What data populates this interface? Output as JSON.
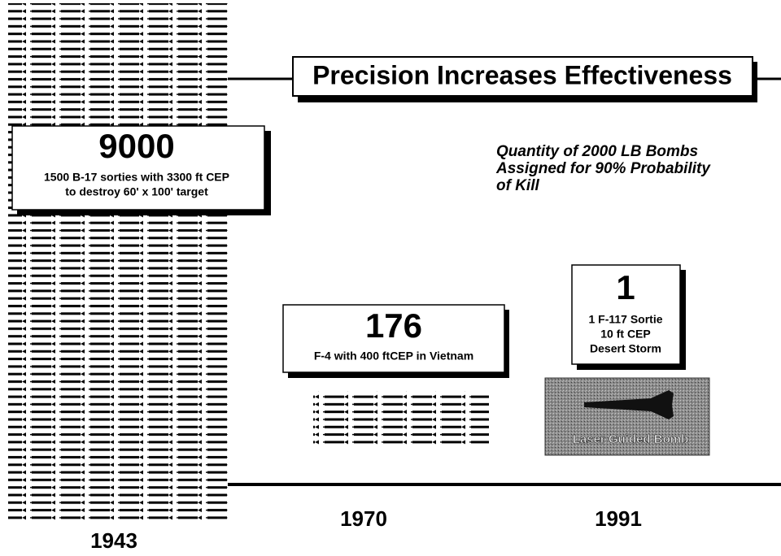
{
  "title": "Precision Increases Effectiveness",
  "note": [
    "Quantity of 2000 LB Bombs",
    "Assigned for 90% Probability",
    "of Kill"
  ],
  "panels": [
    {
      "value": "9000",
      "lines": [
        "1500 B-17 sorties with 3300 ft CEP",
        "to destroy 60' x 100' target"
      ],
      "year": "1943"
    },
    {
      "value": "176",
      "lines": [
        "F-4  with 400 ftCEP in Vietnam"
      ],
      "year": "1970"
    },
    {
      "value": "1",
      "lines": [
        "1 F-117 Sortie",
        "10 ft CEP",
        "Desert Storm"
      ],
      "year": "1991"
    }
  ],
  "image_label": "Laser Guided Bomb"
}
